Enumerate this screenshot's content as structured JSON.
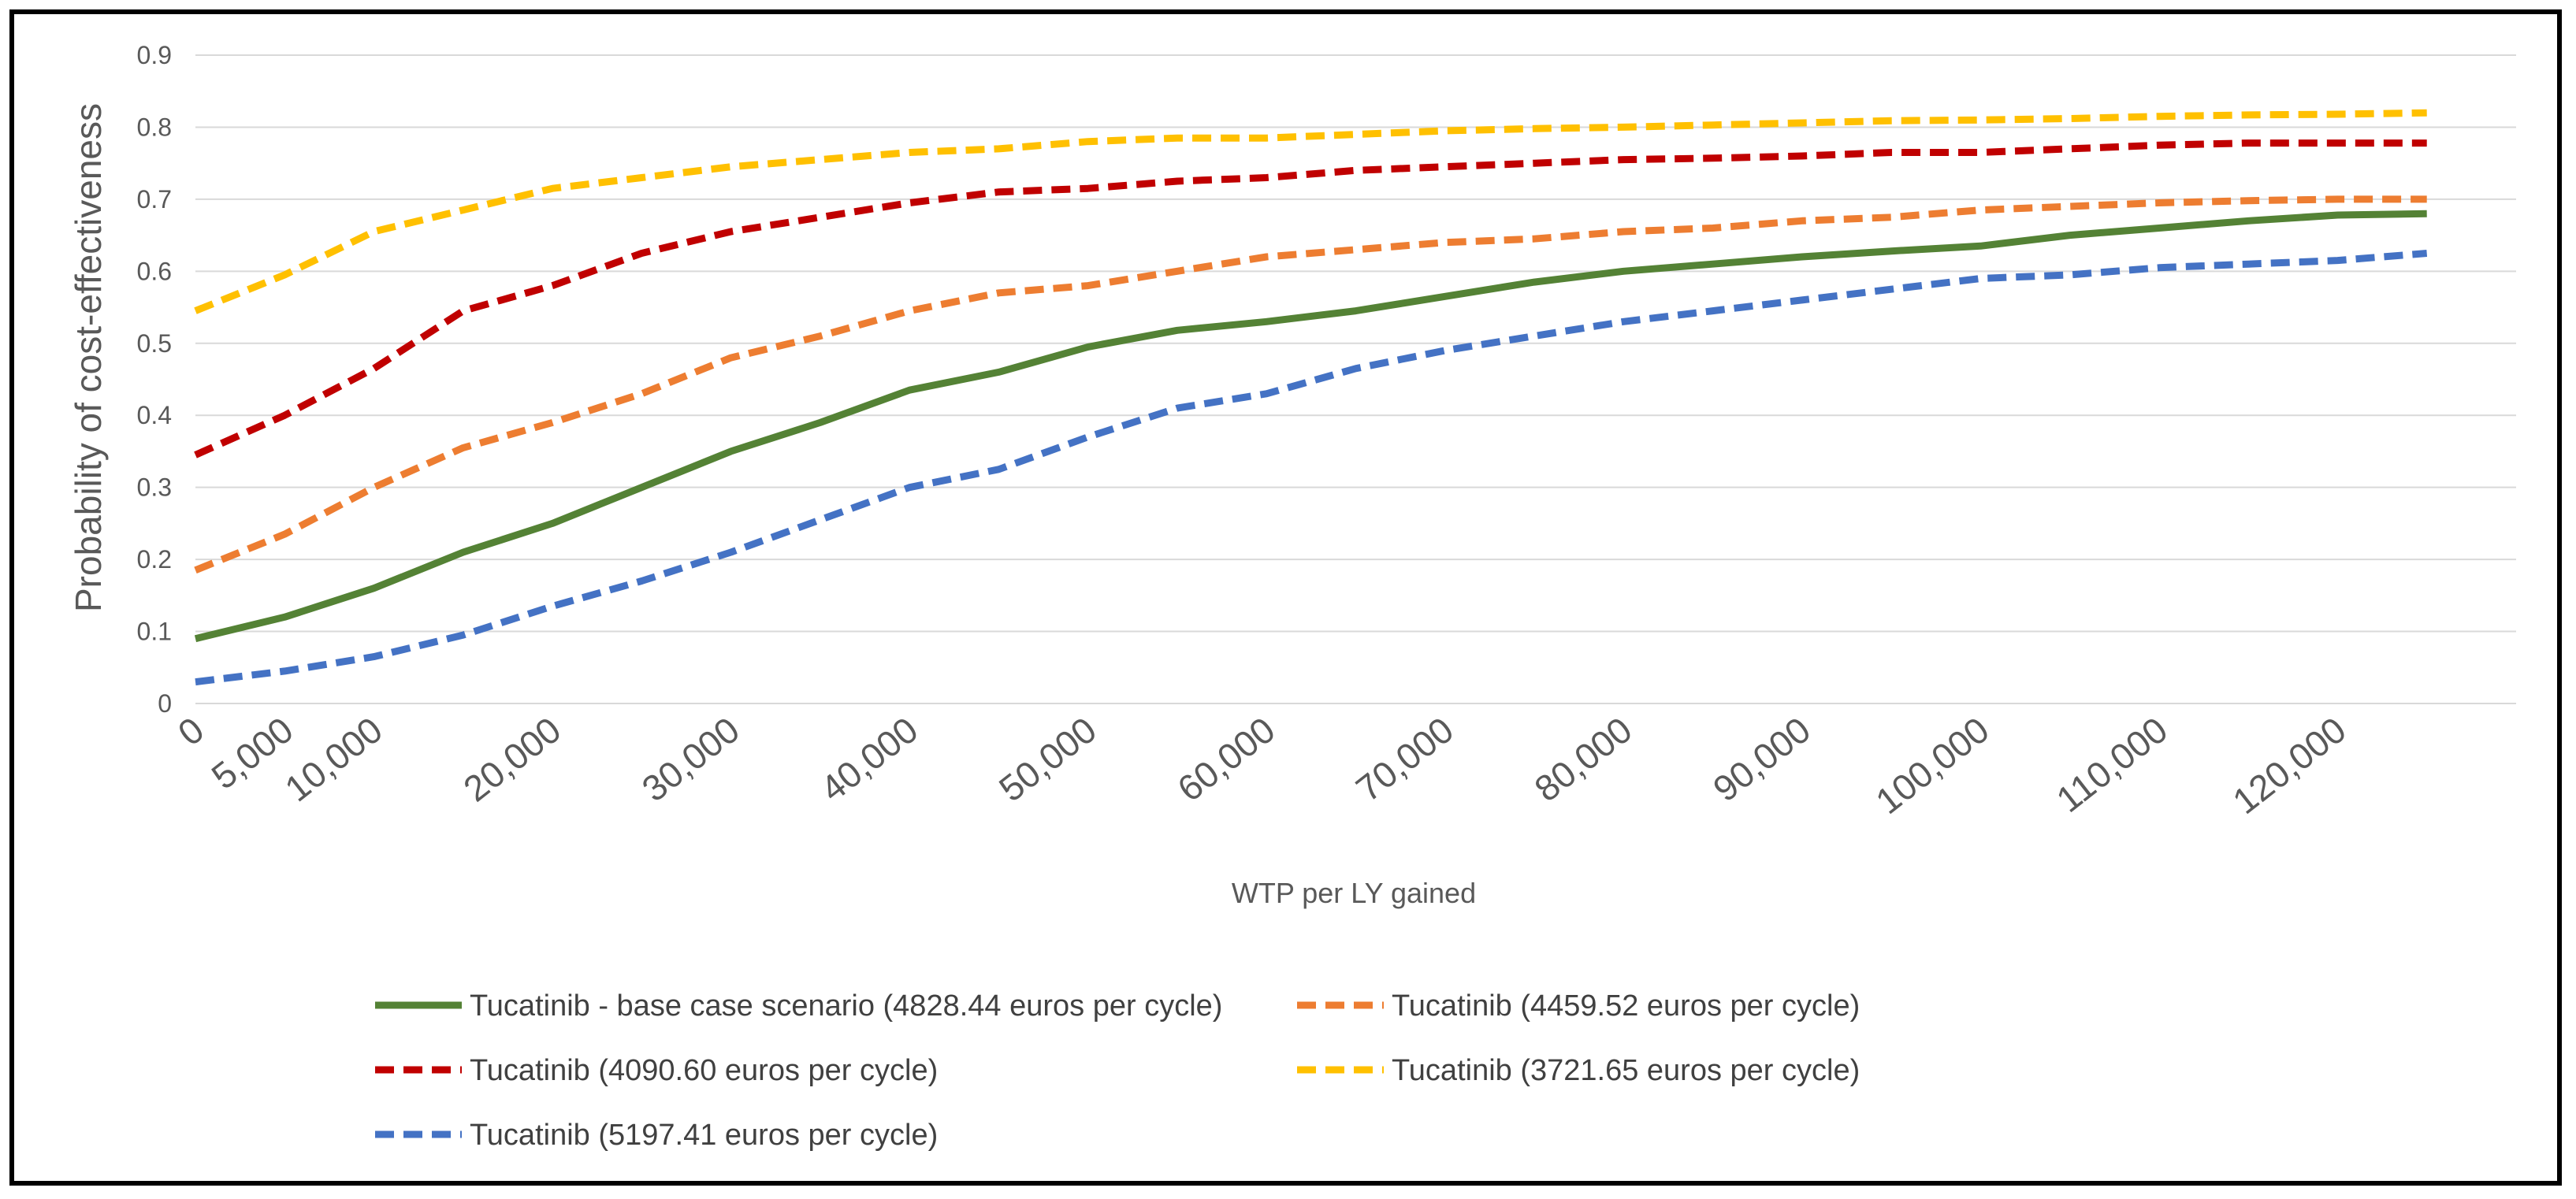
{
  "chart_data": {
    "type": "line",
    "title": "",
    "xlabel": "WTP per LY gained",
    "ylabel": "Probability of cost-effectiveness",
    "ylim": [
      0,
      0.9
    ],
    "yticks": [
      "0",
      "0.1",
      "0.2",
      "0.3",
      "0.4",
      "0.5",
      "0.6",
      "0.7",
      "0.8",
      "0.9"
    ],
    "x_tick_labels": [
      "0",
      "5,000",
      "10,000",
      "20,000",
      "30,000",
      "40,000",
      "50,000",
      "60,000",
      "70,000",
      "80,000",
      "90,000",
      "100,000",
      "110,000",
      "120,000"
    ],
    "x": [
      0,
      5000,
      10000,
      15000,
      20000,
      25000,
      30000,
      35000,
      40000,
      45000,
      50000,
      55000,
      60000,
      65000,
      70000,
      75000,
      80000,
      85000,
      90000,
      95000,
      100000,
      105000,
      110000,
      115000,
      120000,
      125000
    ],
    "grid": "horizontal",
    "legend_position": "bottom",
    "series": [
      {
        "name": "Tucatinib - base case scenario (4828.44 euros per cycle)",
        "color": "#548235",
        "dash": "solid",
        "values": [
          0.09,
          0.12,
          0.16,
          0.21,
          0.25,
          0.3,
          0.35,
          0.39,
          0.435,
          0.46,
          0.495,
          0.518,
          0.53,
          0.545,
          0.565,
          0.585,
          0.6,
          0.61,
          0.62,
          0.628,
          0.635,
          0.65,
          0.66,
          0.67,
          0.678,
          0.68
        ]
      },
      {
        "name": "Tucatinib  (4459.52 euros per cycle)",
        "color": "#ED7D31",
        "dash": "dashed",
        "values": [
          0.185,
          0.235,
          0.3,
          0.355,
          0.39,
          0.43,
          0.48,
          0.51,
          0.545,
          0.57,
          0.58,
          0.6,
          0.62,
          0.63,
          0.64,
          0.645,
          0.655,
          0.66,
          0.67,
          0.675,
          0.685,
          0.69,
          0.695,
          0.698,
          0.7,
          0.7
        ]
      },
      {
        "name": "Tucatinib  (4090.60 euros per cycle)",
        "color": "#C00000",
        "dash": "dashed",
        "values": [
          0.345,
          0.4,
          0.465,
          0.545,
          0.58,
          0.625,
          0.655,
          0.675,
          0.695,
          0.71,
          0.715,
          0.725,
          0.73,
          0.74,
          0.745,
          0.75,
          0.755,
          0.757,
          0.76,
          0.765,
          0.765,
          0.77,
          0.775,
          0.778,
          0.778,
          0.778
        ]
      },
      {
        "name": "Tucatinib  (3721.65 euros per cycle)",
        "color": "#FFC000",
        "dash": "dashed",
        "values": [
          0.545,
          0.595,
          0.655,
          0.685,
          0.715,
          0.73,
          0.745,
          0.755,
          0.765,
          0.77,
          0.78,
          0.785,
          0.785,
          0.79,
          0.795,
          0.798,
          0.8,
          0.803,
          0.806,
          0.809,
          0.81,
          0.812,
          0.815,
          0.817,
          0.818,
          0.82
        ]
      },
      {
        "name": "Tucatinib  (5197.41 euros per cycle)",
        "color": "#4472C4",
        "dash": "dashed",
        "values": [
          0.03,
          0.045,
          0.065,
          0.095,
          0.135,
          0.17,
          0.21,
          0.255,
          0.3,
          0.325,
          0.37,
          0.41,
          0.43,
          0.465,
          0.49,
          0.51,
          0.53,
          0.545,
          0.56,
          0.575,
          0.59,
          0.595,
          0.605,
          0.61,
          0.615,
          0.625
        ]
      }
    ]
  }
}
